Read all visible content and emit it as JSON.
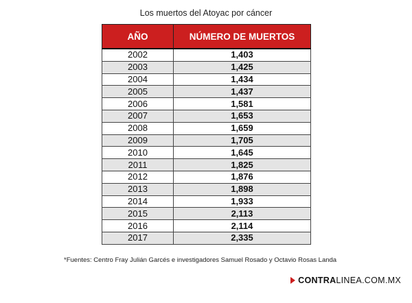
{
  "title": "Los muertos del Atoyac por cáncer",
  "table": {
    "headers": [
      "AÑO",
      "NÚMERO DE MUERTOS"
    ]
  },
  "chart_data": {
    "type": "table",
    "title": "Los muertos del Atoyac por cáncer",
    "columns": [
      "AÑO",
      "NÚMERO DE MUERTOS"
    ],
    "rows": [
      [
        "2002",
        "1,403"
      ],
      [
        "2003",
        "1,425"
      ],
      [
        "2004",
        "1,434"
      ],
      [
        "2005",
        "1,437"
      ],
      [
        "2006",
        "1,581"
      ],
      [
        "2007",
        "1,653"
      ],
      [
        "2008",
        "1,659"
      ],
      [
        "2009",
        "1,705"
      ],
      [
        "2010",
        "1,645"
      ],
      [
        "2011",
        "1,825"
      ],
      [
        "2012",
        "1,876"
      ],
      [
        "2013",
        "1,898"
      ],
      [
        "2014",
        "1,933"
      ],
      [
        "2015",
        "2,113"
      ],
      [
        "2016",
        "2,114"
      ],
      [
        "2017",
        "2,335"
      ]
    ]
  },
  "footnote": "*Fuentes: Centro Fray Julián Garcés e investigadores Samuel Rosado y Octavio Rosas Landa",
  "brand": {
    "bold": "CONTRA",
    "rest": "LINEA.COM.MX",
    "arrow_color": "#cc1f1f"
  },
  "colors": {
    "header_bg": "#cc1f1f",
    "row_alt": "#e4e4e4"
  }
}
